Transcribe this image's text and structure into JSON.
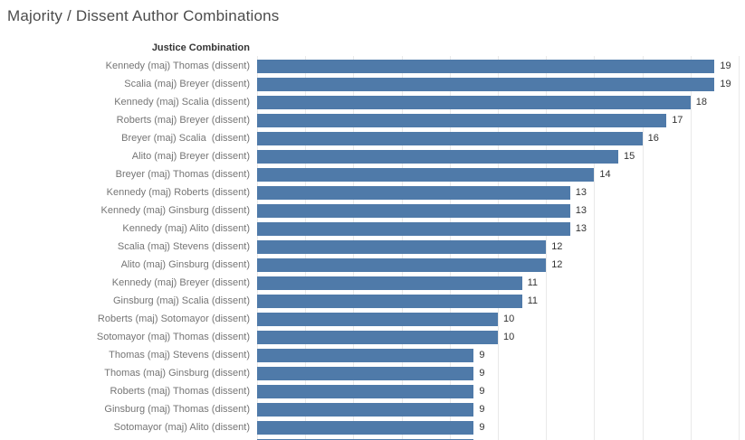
{
  "title": "Majority / Dissent Author Combinations",
  "colors": {
    "background": "#ffffff",
    "bar": "#4f7aa9",
    "title_text": "#4b4b4b",
    "header_text": "#343434",
    "label_text": "#757575",
    "value_text": "#333333",
    "gridline": "#e9e9e9"
  },
  "chart_data": {
    "type": "bar",
    "orientation": "horizontal",
    "title": "Majority / Dissent Author Combinations",
    "row_header": "Justice Combination",
    "categories": [
      "Kennedy (maj) Thomas (dissent)",
      "Scalia (maj) Breyer (dissent)",
      "Kennedy (maj) Scalia (dissent)",
      "Roberts (maj) Breyer (dissent)",
      "Breyer (maj) Scalia  (dissent)",
      "Alito (maj) Breyer (dissent)",
      "Breyer (maj) Thomas (dissent)",
      "Kennedy (maj) Roberts (dissent)",
      "Kennedy (maj) Ginsburg (dissent)",
      "Kennedy (maj) Alito (dissent)",
      "Scalia (maj) Stevens (dissent)",
      "Alito (maj) Ginsburg (dissent)",
      "Kennedy (maj) Breyer (dissent)",
      "Ginsburg (maj) Scalia (dissent)",
      "Roberts (maj) Sotomayor (dissent)",
      "Sotomayor (maj) Thomas (dissent)",
      "Thomas (maj) Stevens (dissent)",
      "Thomas (maj) Ginsburg (dissent)",
      "Roberts (maj) Thomas (dissent)",
      "Ginsburg (maj) Thomas (dissent)",
      "Sotomayor (maj) Alito (dissent)"
    ],
    "values": [
      19,
      19,
      18,
      17,
      16,
      15,
      14,
      13,
      13,
      13,
      12,
      12,
      11,
      11,
      10,
      10,
      9,
      9,
      9,
      9,
      9
    ],
    "value_labels_shown": true,
    "xlim": [
      0,
      20
    ],
    "gridline_interval": 2,
    "grid": true,
    "legend": "none",
    "partial_bottom_bar": {
      "visible": true,
      "approx_value": 9
    }
  }
}
